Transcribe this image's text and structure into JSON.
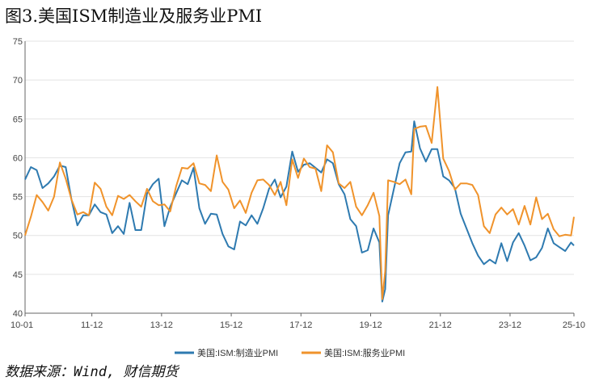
{
  "title": "图3.美国ISM制造业及服务业PMI",
  "source": "数据来源：Wind, 财信期货",
  "chart_data": {
    "type": "line",
    "ylim": [
      40,
      75
    ],
    "yticks": [
      40,
      45,
      50,
      55,
      60,
      65,
      70,
      75
    ],
    "x_start": "2010-01",
    "x_end": "2025-10",
    "xticks": [
      "10-01",
      "11-12",
      "13-12",
      "15-12",
      "17-12",
      "19-12",
      "21-12",
      "23-12",
      "25-10"
    ],
    "colors": {
      "manufacturing": "#2e7ab0",
      "services": "#f0932b"
    },
    "series": [
      {
        "name": "美国:ISM:制造业PMI",
        "x": [
          "2010-01",
          "2010-03",
          "2010-05",
          "2010-07",
          "2010-09",
          "2010-11",
          "2011-01",
          "2011-03",
          "2011-05",
          "2011-07",
          "2011-09",
          "2011-11",
          "2012-01",
          "2012-03",
          "2012-05",
          "2012-07",
          "2012-09",
          "2012-11",
          "2013-01",
          "2013-03",
          "2013-05",
          "2013-07",
          "2013-09",
          "2013-11",
          "2014-01",
          "2014-03",
          "2014-05",
          "2014-07",
          "2014-09",
          "2014-11",
          "2015-01",
          "2015-03",
          "2015-05",
          "2015-07",
          "2015-09",
          "2015-11",
          "2016-01",
          "2016-03",
          "2016-05",
          "2016-07",
          "2016-09",
          "2016-11",
          "2017-01",
          "2017-03",
          "2017-05",
          "2017-07",
          "2017-09",
          "2017-11",
          "2018-01",
          "2018-03",
          "2018-05",
          "2018-07",
          "2018-09",
          "2018-11",
          "2019-01",
          "2019-03",
          "2019-05",
          "2019-07",
          "2019-09",
          "2019-11",
          "2020-01",
          "2020-03",
          "2020-04",
          "2020-05",
          "2020-06",
          "2020-08",
          "2020-10",
          "2020-12",
          "2021-02",
          "2021-03",
          "2021-05",
          "2021-07",
          "2021-09",
          "2021-11",
          "2022-01",
          "2022-03",
          "2022-05",
          "2022-07",
          "2022-09",
          "2022-11",
          "2023-01",
          "2023-03",
          "2023-05",
          "2023-07",
          "2023-09",
          "2023-11",
          "2024-01",
          "2024-03",
          "2024-05",
          "2024-07",
          "2024-09",
          "2024-11",
          "2025-01",
          "2025-03",
          "2025-05",
          "2025-07",
          "2025-09",
          "2025-10"
        ],
        "values": [
          57.2,
          58.8,
          58.4,
          56.1,
          56.7,
          57.6,
          59.0,
          58.8,
          54.6,
          51.3,
          52.6,
          52.6,
          54.0,
          53.0,
          52.7,
          50.3,
          51.2,
          50.2,
          54.2,
          50.7,
          50.7,
          55.4,
          56.6,
          57.3,
          51.2,
          53.7,
          55.4,
          57.1,
          56.6,
          58.7,
          53.5,
          51.5,
          52.8,
          52.7,
          50.2,
          48.6,
          48.2,
          51.8,
          51.3,
          52.6,
          51.5,
          53.5,
          56.0,
          57.2,
          54.9,
          56.3,
          60.8,
          58.2,
          59.1,
          59.3,
          58.7,
          58.1,
          59.8,
          59.3,
          56.6,
          55.3,
          52.1,
          51.2,
          47.8,
          48.1,
          50.9,
          49.1,
          41.5,
          43.1,
          52.6,
          56.0,
          59.3,
          60.7,
          60.8,
          64.7,
          61.2,
          59.5,
          61.1,
          61.1,
          57.6,
          57.1,
          56.1,
          52.8,
          50.9,
          49.0,
          47.4,
          46.3,
          46.9,
          46.4,
          49.0,
          46.7,
          49.1,
          50.3,
          48.7,
          46.8,
          47.2,
          48.4,
          50.9,
          49.0,
          48.5,
          48.0,
          49.1,
          48.7
        ]
      },
      {
        "name": "美国:ISM:服务业PMI",
        "x": [
          "2010-01",
          "2010-03",
          "2010-05",
          "2010-07",
          "2010-09",
          "2010-11",
          "2011-01",
          "2011-03",
          "2011-05",
          "2011-07",
          "2011-09",
          "2011-11",
          "2012-01",
          "2012-03",
          "2012-05",
          "2012-07",
          "2012-09",
          "2012-11",
          "2013-01",
          "2013-03",
          "2013-05",
          "2013-07",
          "2013-09",
          "2013-11",
          "2014-01",
          "2014-03",
          "2014-05",
          "2014-07",
          "2014-09",
          "2014-11",
          "2015-01",
          "2015-03",
          "2015-05",
          "2015-07",
          "2015-09",
          "2015-11",
          "2016-01",
          "2016-03",
          "2016-05",
          "2016-07",
          "2016-09",
          "2016-11",
          "2017-01",
          "2017-03",
          "2017-05",
          "2017-07",
          "2017-09",
          "2017-11",
          "2018-01",
          "2018-03",
          "2018-05",
          "2018-07",
          "2018-09",
          "2018-11",
          "2019-01",
          "2019-03",
          "2019-05",
          "2019-07",
          "2019-09",
          "2019-11",
          "2020-01",
          "2020-03",
          "2020-04",
          "2020-05",
          "2020-06",
          "2020-08",
          "2020-10",
          "2020-12",
          "2021-02",
          "2021-03",
          "2021-05",
          "2021-07",
          "2021-09",
          "2021-11",
          "2022-01",
          "2022-03",
          "2022-05",
          "2022-07",
          "2022-09",
          "2022-11",
          "2023-01",
          "2023-03",
          "2023-05",
          "2023-07",
          "2023-09",
          "2023-11",
          "2024-01",
          "2024-03",
          "2024-05",
          "2024-07",
          "2024-09",
          "2024-11",
          "2025-01",
          "2025-03",
          "2025-05",
          "2025-07",
          "2025-09",
          "2025-10"
        ],
        "values": [
          50.0,
          52.4,
          55.2,
          54.3,
          53.2,
          55.0,
          59.4,
          57.3,
          54.6,
          52.7,
          53.0,
          52.6,
          56.8,
          56.0,
          53.7,
          52.6,
          55.1,
          54.7,
          55.2,
          54.4,
          53.7,
          56.0,
          54.4,
          53.9,
          54.0,
          53.1,
          56.3,
          58.7,
          58.6,
          59.3,
          56.7,
          56.5,
          55.7,
          60.3,
          56.9,
          55.9,
          53.5,
          54.5,
          52.9,
          55.5,
          57.1,
          57.2,
          56.5,
          55.2,
          56.9,
          53.9,
          59.8,
          57.4,
          59.9,
          58.8,
          58.6,
          55.7,
          61.6,
          60.7,
          56.7,
          56.1,
          56.9,
          53.7,
          52.6,
          53.9,
          55.5,
          52.5,
          41.8,
          45.4,
          57.1,
          56.9,
          56.6,
          57.2,
          55.3,
          63.7,
          64.0,
          64.1,
          61.9,
          69.1,
          59.9,
          58.3,
          55.9,
          56.7,
          56.7,
          56.5,
          55.2,
          51.2,
          50.3,
          52.7,
          53.6,
          52.7,
          53.4,
          51.4,
          53.8,
          51.4,
          54.9,
          52.1,
          52.8,
          50.8,
          49.9,
          50.1,
          50.0,
          52.4
        ]
      }
    ]
  }
}
